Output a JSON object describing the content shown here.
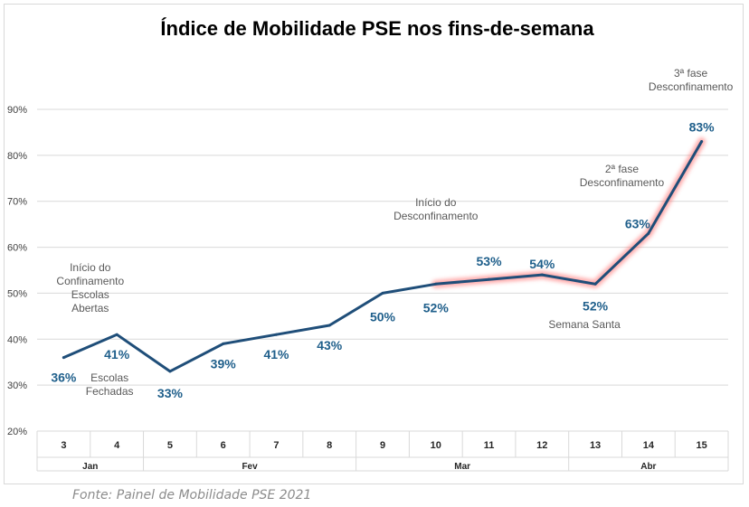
{
  "chart_data": {
    "type": "line",
    "title": "Índice de Mobilidade PSE nos fins-de-semana",
    "x": [
      "3",
      "4",
      "5",
      "6",
      "7",
      "8",
      "9",
      "10",
      "11",
      "12",
      "13",
      "14",
      "15"
    ],
    "months": [
      {
        "label": "Jan",
        "weeks": [
          "3",
          "4"
        ]
      },
      {
        "label": "Fev",
        "weeks": [
          "5",
          "6",
          "7",
          "8"
        ]
      },
      {
        "label": "Mar",
        "weeks": [
          "9",
          "10",
          "11",
          "12"
        ]
      },
      {
        "label": "Abr",
        "weeks": [
          "13",
          "14",
          "15"
        ]
      }
    ],
    "series": [
      {
        "name": "Índice de Mobilidade PSE",
        "values": [
          36,
          41,
          33,
          39,
          41,
          43,
          50,
          52,
          53,
          54,
          52,
          63,
          83
        ],
        "value_labels": [
          "36%",
          "41%",
          "33%",
          "39%",
          "41%",
          "43%",
          "50%",
          "52%",
          "53%",
          "54%",
          "52%",
          "63%",
          "83%"
        ],
        "color": "#1f4e79",
        "highlight_color": "#ff6b6b"
      }
    ],
    "ylim": [
      20,
      90
    ],
    "yticks": [
      20,
      30,
      40,
      50,
      60,
      70,
      80,
      90
    ],
    "ytick_labels": [
      "20%",
      "30%",
      "40%",
      "50%",
      "60%",
      "70%",
      "80%",
      "90%"
    ],
    "grid": true,
    "annotations": [
      {
        "text": "Início do\nConfinamento\nEscolas\nAbertas"
      },
      {
        "text": "Escolas\nFechadas"
      },
      {
        "text": "Início do\nDesconfinamento"
      },
      {
        "text": "Semana Santa"
      },
      {
        "text": "2ª fase\nDesconfinamento"
      },
      {
        "text": "3ª fase\nDesconfinamento"
      }
    ]
  },
  "source": "Fonte: Painel de Mobilidade PSE 2021",
  "colors": {
    "label": "#1f5f8b",
    "annotation": "#595959",
    "grid": "#d9d9d9",
    "axis_text": "#404040"
  }
}
